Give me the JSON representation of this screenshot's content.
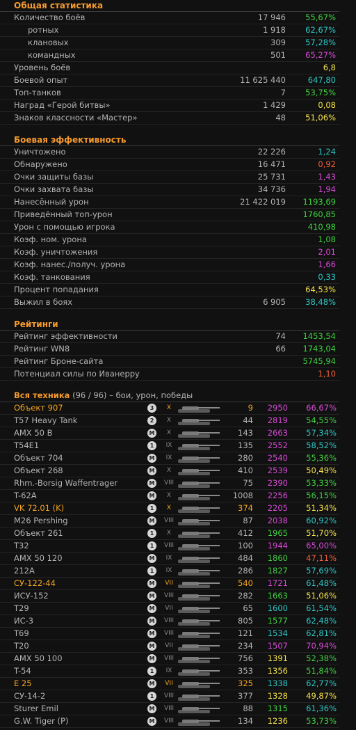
{
  "general": {
    "title": "Общая статистика",
    "rows": [
      {
        "label": "Количество боёв",
        "value": "17 946",
        "pct": "55,67%",
        "pct_color": "#3fd13f",
        "indent": false
      },
      {
        "label": "ротных",
        "value": "1 918",
        "pct": "62,67%",
        "pct_color": "#2ec6c6",
        "indent": true
      },
      {
        "label": "клановых",
        "value": "309",
        "pct": "57,28%",
        "pct_color": "#2ec6c6",
        "indent": true
      },
      {
        "label": "командных",
        "value": "501",
        "pct": "65,27%",
        "pct_color": "#d84ad8",
        "indent": true
      },
      {
        "label": "Уровень боёв",
        "value": "",
        "pct": "6,8",
        "pct_color": "#f5e24a",
        "indent": false
      },
      {
        "label": "Боевой опыт",
        "value": "11 625 440",
        "pct": "647,80",
        "pct_color": "#2ec6c6",
        "indent": false
      },
      {
        "label": "Топ-танков",
        "value": "7",
        "pct": "53,75%",
        "pct_color": "#3fd13f",
        "indent": false
      },
      {
        "label": "Наград «Герой битвы»",
        "value": "1 429",
        "pct": "0,08",
        "pct_color": "#f5e24a",
        "indent": false
      },
      {
        "label": "Знаков классности «Мастер»",
        "value": "48",
        "pct": "51,06%",
        "pct_color": "#f5e24a",
        "indent": false
      }
    ]
  },
  "efficiency": {
    "title": "Боевая эффективность",
    "rows": [
      {
        "label": "Уничтожено",
        "value": "22 226",
        "pct": "1,24",
        "pct_color": "#2ec6c6"
      },
      {
        "label": "Обнаружено",
        "value": "16 471",
        "pct": "0,92",
        "pct_color": "#f0603a"
      },
      {
        "label": "Очки защиты базы",
        "value": "25 731",
        "pct": "1,43",
        "pct_color": "#d84ad8"
      },
      {
        "label": "Очки захвата базы",
        "value": "34 736",
        "pct": "1,94",
        "pct_color": "#d84ad8"
      },
      {
        "label": "Нанесённый урон",
        "value": "21 422 019",
        "pct": "1193,69",
        "pct_color": "#3fd13f"
      },
      {
        "label": "Приведённый топ-урон",
        "value": "",
        "pct": "1760,85",
        "pct_color": "#3fd13f"
      },
      {
        "label": "Урон с помощью игрока",
        "value": "",
        "pct": "410,98",
        "pct_color": "#3fd13f"
      },
      {
        "label": "Коэф. ном. урона",
        "value": "",
        "pct": "1,08",
        "pct_color": "#3fd13f"
      },
      {
        "label": "Коэф. уничтожения",
        "value": "",
        "pct": "2,01",
        "pct_color": "#d84ad8"
      },
      {
        "label": "Коэф. нанес./получ. урона",
        "value": "",
        "pct": "1,66",
        "pct_color": "#d84ad8"
      },
      {
        "label": "Коэф. танкования",
        "value": "",
        "pct": "0,33",
        "pct_color": "#2ec6c6"
      },
      {
        "label": "Процент попадания",
        "value": "",
        "pct": "64,53%",
        "pct_color": "#f5e24a"
      },
      {
        "label": "Выжил в боях",
        "value": "6 905",
        "pct": "38,48%",
        "pct_color": "#2ec6c6"
      }
    ]
  },
  "ratings": {
    "title": "Рейтинги",
    "rows": [
      {
        "label": "Рейтинг эффективности",
        "value": "74",
        "pct": "1453,54",
        "pct_color": "#3fd13f"
      },
      {
        "label": "Рейтинг WN8",
        "value": "66",
        "pct": "1743,04",
        "pct_color": "#3fd13f"
      },
      {
        "label": "Рейтинг Броне-сайта",
        "value": "",
        "pct": "5745,94",
        "pct_color": "#3fd13f"
      },
      {
        "label": "Потенциал силы по Иванерру",
        "value": "",
        "pct": "1,10",
        "pct_color": "#f0603a"
      }
    ]
  },
  "vehicles": {
    "title": "Вся техника",
    "count": "(96 / 96)",
    "subtitle": "– бои, урон, победы",
    "rows": [
      {
        "name": "Объект 907",
        "gold": true,
        "mastery": "3",
        "tier": "X",
        "battles": "9",
        "damage": "2950",
        "dmg_color": "#d84ad8",
        "wr": "66,67%",
        "wr_color": "#d84ad8"
      },
      {
        "name": "T57 Heavy Tank",
        "gold": false,
        "mastery": "2",
        "tier": "X",
        "battles": "44",
        "damage": "2819",
        "dmg_color": "#d84ad8",
        "wr": "54,55%",
        "wr_color": "#3fd13f"
      },
      {
        "name": "AMX 50 B",
        "gold": false,
        "mastery": "M",
        "tier": "X",
        "battles": "143",
        "damage": "2663",
        "dmg_color": "#d84ad8",
        "wr": "57,34%",
        "wr_color": "#2ec6c6"
      },
      {
        "name": "T54E1",
        "gold": false,
        "mastery": "1",
        "tier": "IX",
        "battles": "135",
        "damage": "2552",
        "dmg_color": "#d84ad8",
        "wr": "58,52%",
        "wr_color": "#2ec6c6"
      },
      {
        "name": "Объект 704",
        "gold": false,
        "mastery": "M",
        "tier": "IX",
        "battles": "280",
        "damage": "2540",
        "dmg_color": "#d84ad8",
        "wr": "55,36%",
        "wr_color": "#3fd13f"
      },
      {
        "name": "Объект 268",
        "gold": false,
        "mastery": "M",
        "tier": "X",
        "battles": "410",
        "damage": "2539",
        "dmg_color": "#d84ad8",
        "wr": "50,49%",
        "wr_color": "#f5e24a"
      },
      {
        "name": "Rhm.-Borsig Waffentrager",
        "gold": false,
        "mastery": "M",
        "tier": "VIII",
        "battles": "75",
        "damage": "2390",
        "dmg_color": "#d84ad8",
        "wr": "53,33%",
        "wr_color": "#3fd13f"
      },
      {
        "name": "T-62A",
        "gold": false,
        "mastery": "M",
        "tier": "X",
        "battles": "1008",
        "damage": "2256",
        "dmg_color": "#d84ad8",
        "wr": "56,15%",
        "wr_color": "#3fd13f"
      },
      {
        "name": "VK 72.01 (K)",
        "gold": true,
        "mastery": "1",
        "tier": "X",
        "battles": "374",
        "damage": "2205",
        "dmg_color": "#d84ad8",
        "wr": "51,34%",
        "wr_color": "#f5e24a"
      },
      {
        "name": "M26 Pershing",
        "gold": false,
        "mastery": "M",
        "tier": "VIII",
        "battles": "87",
        "damage": "2038",
        "dmg_color": "#d84ad8",
        "wr": "60,92%",
        "wr_color": "#2ec6c6"
      },
      {
        "name": "Объект 261",
        "gold": false,
        "mastery": "1",
        "tier": "X",
        "battles": "412",
        "damage": "1965",
        "dmg_color": "#3fd13f",
        "wr": "51,70%",
        "wr_color": "#f5e24a"
      },
      {
        "name": "T32",
        "gold": false,
        "mastery": "1",
        "tier": "VIII",
        "battles": "100",
        "damage": "1944",
        "dmg_color": "#d84ad8",
        "wr": "65,00%",
        "wr_color": "#d84ad8"
      },
      {
        "name": "AMX 50 120",
        "gold": false,
        "mastery": "M",
        "tier": "IX",
        "battles": "484",
        "damage": "1860",
        "dmg_color": "#3fd13f",
        "wr": "47,11%",
        "wr_color": "#f0603a"
      },
      {
        "name": "212A",
        "gold": false,
        "mastery": "1",
        "tier": "IX",
        "battles": "286",
        "damage": "1827",
        "dmg_color": "#3fd13f",
        "wr": "57,69%",
        "wr_color": "#2ec6c6"
      },
      {
        "name": "СУ-122-44",
        "gold": true,
        "mastery": "M",
        "tier": "VII",
        "battles": "540",
        "damage": "1721",
        "dmg_color": "#d84ad8",
        "wr": "61,48%",
        "wr_color": "#2ec6c6"
      },
      {
        "name": "ИСУ-152",
        "gold": false,
        "mastery": "M",
        "tier": "VIII",
        "battles": "282",
        "damage": "1663",
        "dmg_color": "#3fd13f",
        "wr": "51,06%",
        "wr_color": "#f5e24a"
      },
      {
        "name": "T29",
        "gold": false,
        "mastery": "M",
        "tier": "VII",
        "battles": "65",
        "damage": "1600",
        "dmg_color": "#2ec6c6",
        "wr": "61,54%",
        "wr_color": "#2ec6c6"
      },
      {
        "name": "ИС-3",
        "gold": false,
        "mastery": "M",
        "tier": "VIII",
        "battles": "805",
        "damage": "1577",
        "dmg_color": "#3fd13f",
        "wr": "62,48%",
        "wr_color": "#2ec6c6"
      },
      {
        "name": "T69",
        "gold": false,
        "mastery": "M",
        "tier": "VIII",
        "battles": "121",
        "damage": "1534",
        "dmg_color": "#2ec6c6",
        "wr": "62,81%",
        "wr_color": "#2ec6c6"
      },
      {
        "name": "T20",
        "gold": false,
        "mastery": "M",
        "tier": "VII",
        "battles": "234",
        "damage": "1507",
        "dmg_color": "#d84ad8",
        "wr": "70,94%",
        "wr_color": "#d84ad8"
      },
      {
        "name": "AMX 50 100",
        "gold": false,
        "mastery": "M",
        "tier": "VIII",
        "battles": "756",
        "damage": "1391",
        "dmg_color": "#f5e24a",
        "wr": "52,38%",
        "wr_color": "#3fd13f"
      },
      {
        "name": "T-54",
        "gold": false,
        "mastery": "1",
        "tier": "IX",
        "battles": "353",
        "damage": "1356",
        "dmg_color": "#f5e24a",
        "wr": "51,84%",
        "wr_color": "#3fd13f"
      },
      {
        "name": "E 25",
        "gold": true,
        "mastery": "M",
        "tier": "VII",
        "battles": "325",
        "damage": "1338",
        "dmg_color": "#2ec6c6",
        "wr": "62,77%",
        "wr_color": "#2ec6c6"
      },
      {
        "name": "СУ-14-2",
        "gold": false,
        "mastery": "1",
        "tier": "VIII",
        "battles": "377",
        "damage": "1328",
        "dmg_color": "#f5e24a",
        "wr": "49,87%",
        "wr_color": "#f5e24a"
      },
      {
        "name": "Sturer Emil",
        "gold": false,
        "mastery": "M",
        "tier": "VIII",
        "battles": "88",
        "damage": "1315",
        "dmg_color": "#3fd13f",
        "wr": "61,36%",
        "wr_color": "#2ec6c6"
      },
      {
        "name": "G.W. Tiger (P)",
        "gold": false,
        "mastery": "M",
        "tier": "VIII",
        "battles": "134",
        "damage": "1236",
        "dmg_color": "#f5e24a",
        "wr": "53,73%",
        "wr_color": "#3fd13f"
      }
    ]
  }
}
